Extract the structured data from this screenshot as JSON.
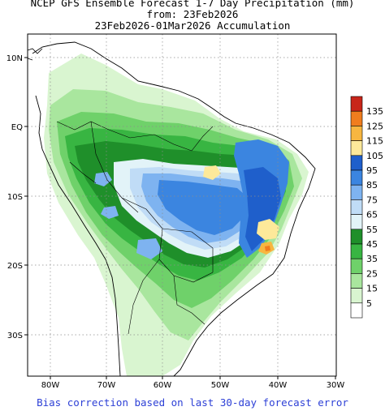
{
  "header": {
    "line1": "NCEP GFS Ensemble Forecast 1-7 Day Precipitation (mm)",
    "line2": "from: 23Feb2026",
    "line3": "23Feb2026-01Mar2026 Accumulation"
  },
  "footer": {
    "note": "Bias correction based on last 30-day forecast error"
  },
  "map": {
    "lon_ticks": [
      "80W",
      "70W",
      "60W",
      "50W",
      "40W",
      "30W"
    ],
    "lat_ticks": [
      "10N",
      "EQ",
      "10S",
      "20S",
      "30S"
    ],
    "background": "#ffffff",
    "land_outline_color": "#000000",
    "grid_style": "dotted"
  },
  "legend": {
    "placement": "right",
    "bins": [
      {
        "label": "135",
        "color": "#c8261a"
      },
      {
        "label": "125",
        "color": "#f07d1e"
      },
      {
        "label": "115",
        "color": "#f7b640"
      },
      {
        "label": "105",
        "color": "#fde99a"
      },
      {
        "label": "95",
        "color": "#1f5fcb"
      },
      {
        "label": "85",
        "color": "#3b85e0"
      },
      {
        "label": "75",
        "color": "#7eb3f0"
      },
      {
        "label": "65",
        "color": "#c0dcf6"
      },
      {
        "label": "55",
        "color": "#e2f3f8"
      },
      {
        "label": "45",
        "color": "#1f8f2a"
      },
      {
        "label": "35",
        "color": "#38b542"
      },
      {
        "label": "25",
        "color": "#6fd16a"
      },
      {
        "label": "15",
        "color": "#a9e69e"
      },
      {
        "label": "5",
        "color": "#d9f5d0"
      },
      {
        "label": "",
        "color": "#ffffff"
      }
    ]
  }
}
